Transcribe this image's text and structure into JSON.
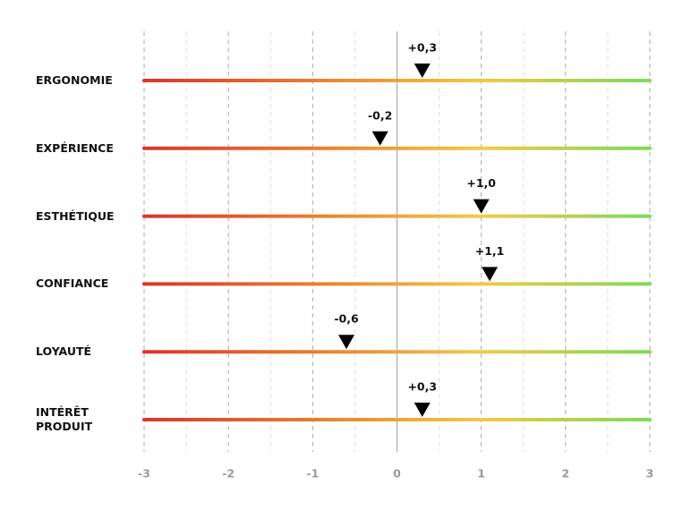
{
  "chart_data": {
    "type": "marker",
    "categories": [
      "ERGONOMIE",
      "EXPÉRIENCE",
      "ESTHÉTIQUE",
      "CONFIANCE",
      "LOYAUTÉ",
      "INTÉRÊT PRODUIT"
    ],
    "values": [
      0.3,
      -0.2,
      1.0,
      1.1,
      -0.6,
      0.3
    ],
    "value_labels": [
      "+0,3",
      "-0,2",
      "+1,0",
      "+1,1",
      "-0,6",
      "+0,3"
    ],
    "xlim": [
      -3,
      3
    ],
    "xticks": [
      -3,
      -2,
      -1,
      0,
      1,
      2,
      3
    ],
    "grid": true,
    "gradient": [
      "#d9352b",
      "#e97d2e",
      "#f1c94a",
      "#7fd957"
    ],
    "marker_color": "#000000"
  }
}
